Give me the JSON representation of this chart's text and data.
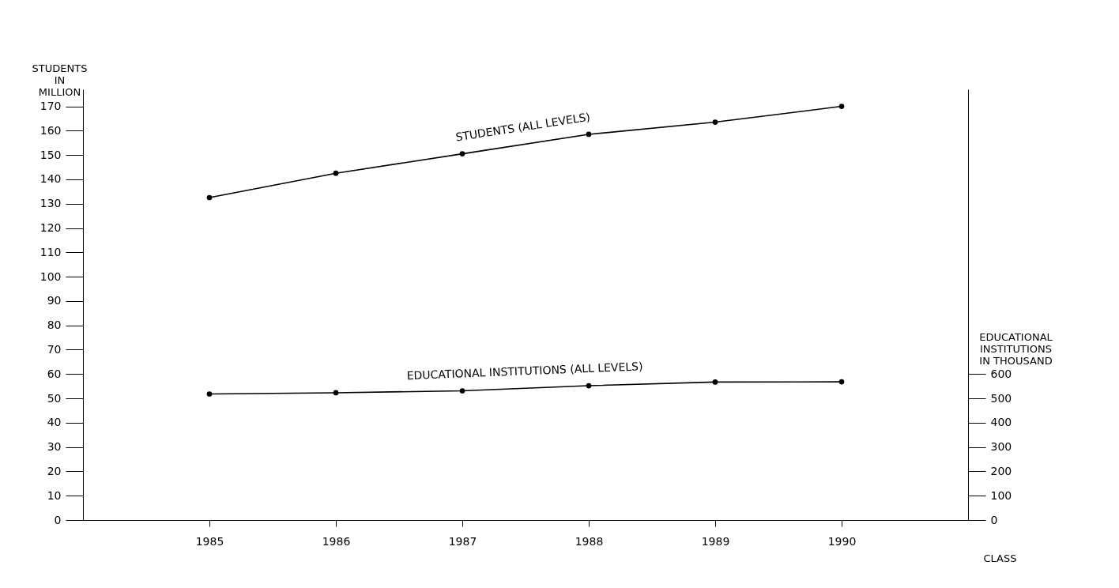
{
  "chart_data": {
    "type": "line",
    "xlabel": "CLASS",
    "ylabel": "STUDENTS IN MILLION",
    "y2label": "EDUCATIONAL INSTITUTIONS IN THOUSAND",
    "x": [
      1985,
      1986,
      1987,
      1988,
      1989,
      1990
    ],
    "xlim": [
      1984,
      1991
    ],
    "xticks": [
      1985,
      1986,
      1987,
      1988,
      1989,
      1990
    ],
    "ylim": [
      0,
      177
    ],
    "yticks": [
      0,
      10,
      20,
      30,
      40,
      50,
      60,
      70,
      80,
      90,
      100,
      110,
      120,
      130,
      140,
      150,
      160,
      170
    ],
    "y2lim": [
      0,
      1770
    ],
    "y2ticks": [
      0,
      100,
      200,
      300,
      400,
      500,
      600
    ],
    "series": [
      {
        "name": "STUDENTS (ALL LEVELS)",
        "color": "#000000",
        "values": [
          132.5,
          142.5,
          150.5,
          158.5,
          163.5,
          170
        ]
      },
      {
        "name": "EDUCATIONAL INSTITUTIONS (ALL LEVELS)",
        "color": "#000000",
        "axis": "y2",
        "values": [
          518,
          523,
          531,
          552,
          567,
          568
        ]
      }
    ],
    "marker": "circle",
    "line_style": "solid",
    "grid": false,
    "legend": false
  }
}
